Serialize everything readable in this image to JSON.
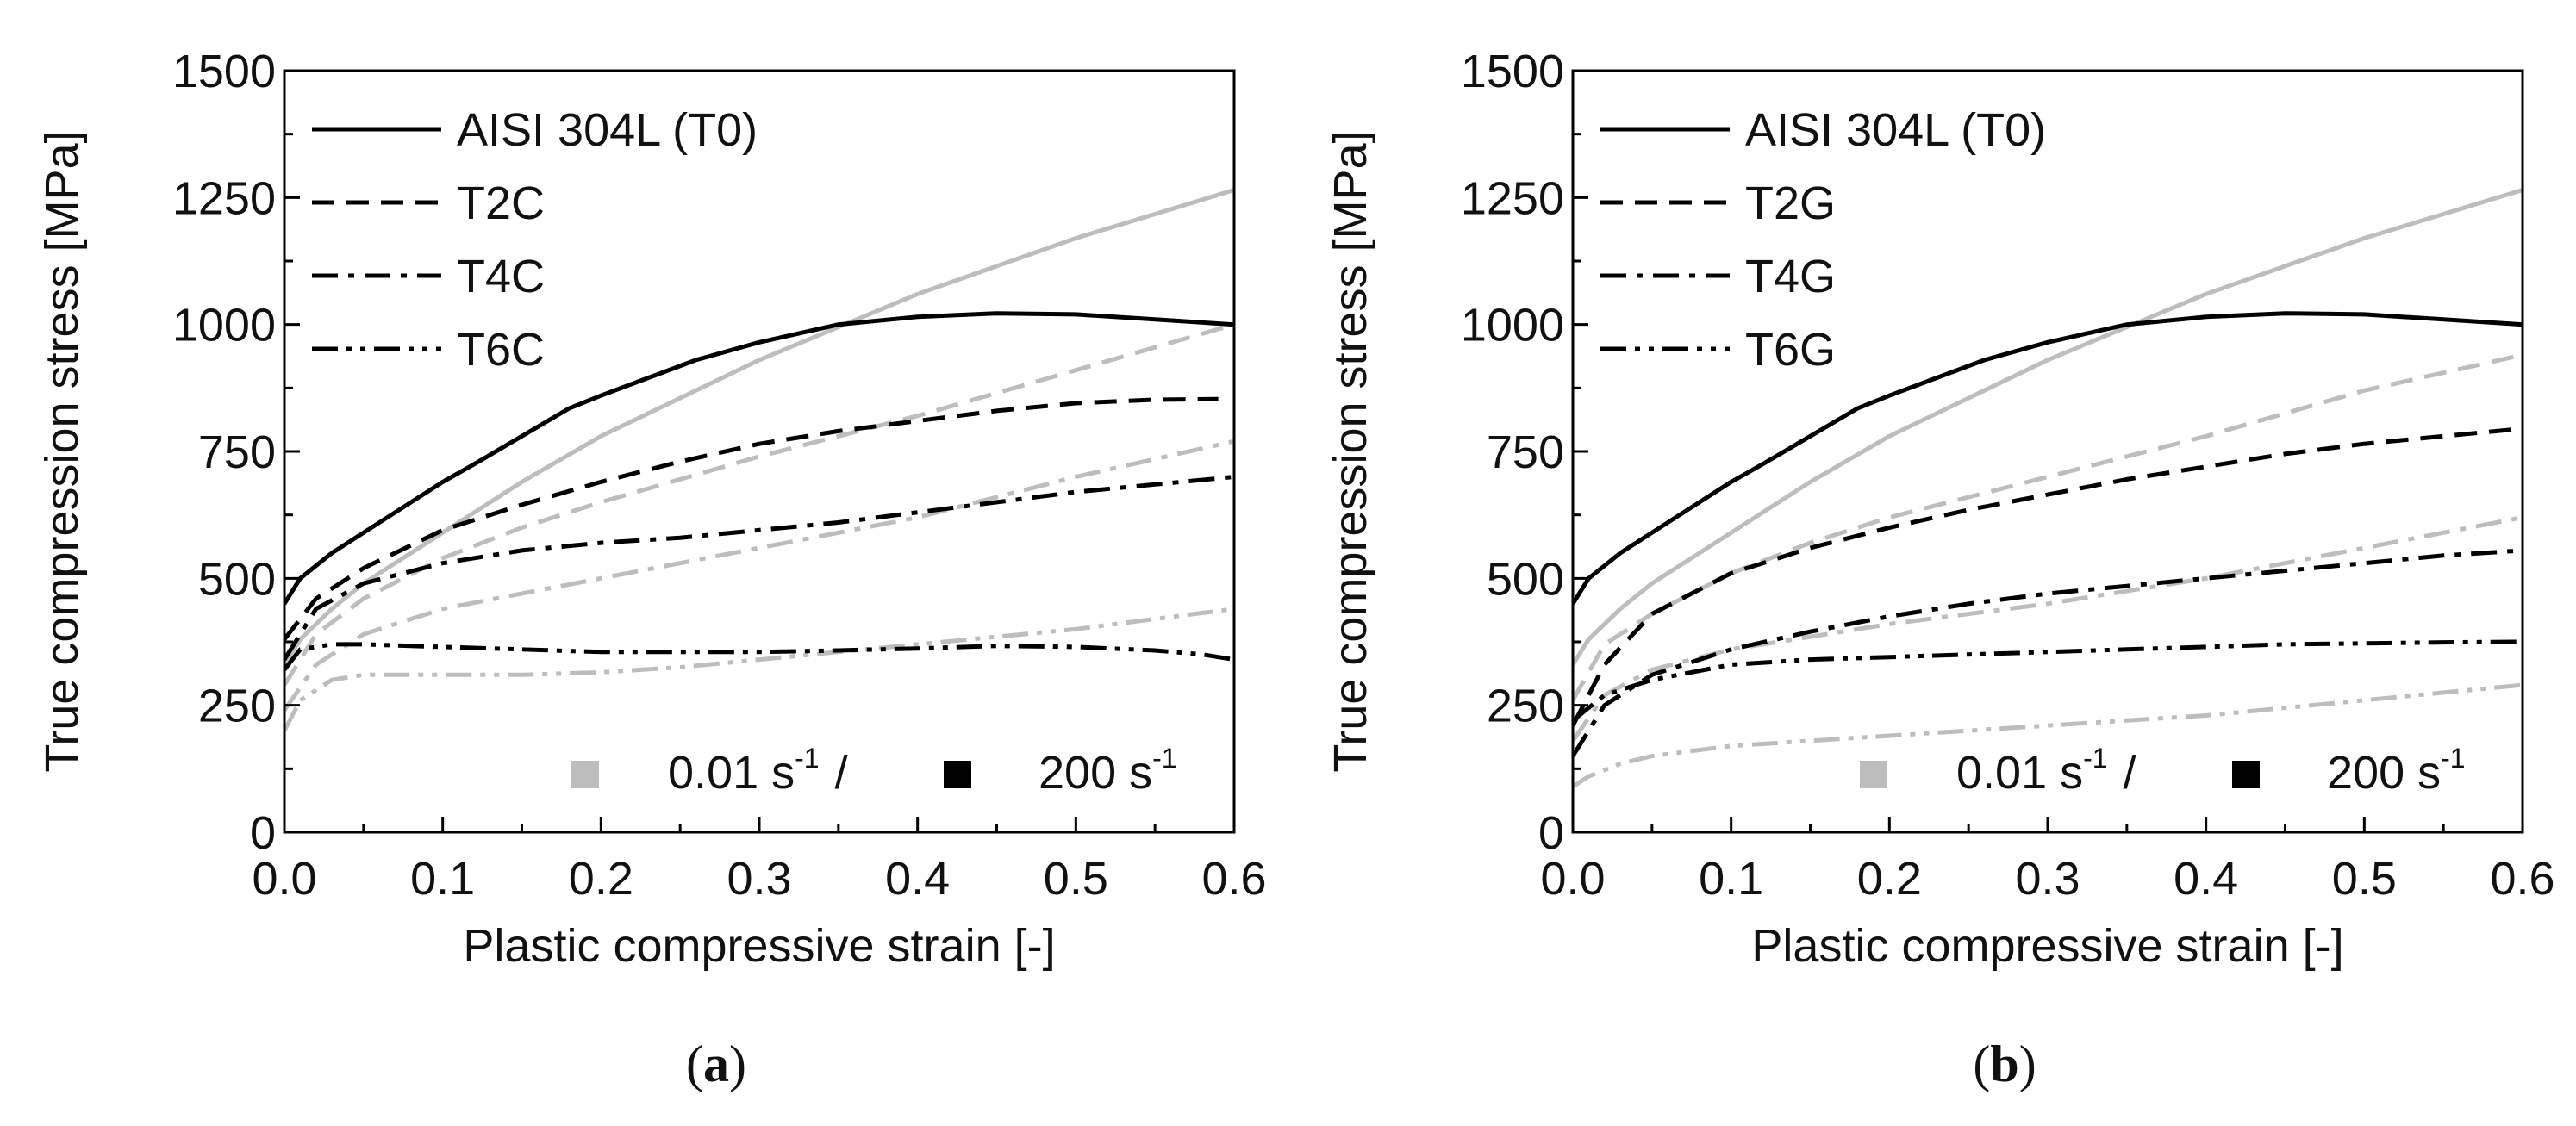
{
  "chart_data": [
    {
      "type": "line",
      "caption_letter": "a",
      "xlabel": "Plastic compressive strain [-]",
      "ylabel": "True compression stress [MPa]",
      "xlim": [
        0.0,
        0.6
      ],
      "ylim": [
        0,
        1500
      ],
      "xticks": [
        0.0,
        0.1,
        0.2,
        0.3,
        0.4,
        0.5,
        0.6
      ],
      "xtick_labels": [
        "0.0",
        "0.1",
        "0.2",
        "0.3",
        "0.4",
        "0.5",
        "0.6"
      ],
      "yticks": [
        0,
        250,
        500,
        750,
        1000,
        1250,
        1500
      ],
      "ytick_labels": [
        "0",
        "250",
        "500",
        "750",
        "1000",
        "1250",
        "1500"
      ],
      "legend": [
        {
          "label": "AISI 304L (T0)",
          "style": "solid"
        },
        {
          "label": "T2C",
          "style": "dash"
        },
        {
          "label": "T4C",
          "style": "dashdot"
        },
        {
          "label": "T6C",
          "style": "dashdotdot"
        }
      ],
      "rate_legend": {
        "low": "0.01 s",
        "high": "200 s",
        "exponent": "-1",
        "separator": "/"
      },
      "colors": {
        "low_rate": "#bdbdbd",
        "high_rate": "#000000"
      },
      "series": [
        {
          "name": "AISI 304L (T0)",
          "rate": "0.01 s-1",
          "style": "solid",
          "x": [
            0,
            0.01,
            0.03,
            0.05,
            0.1,
            0.15,
            0.2,
            0.3,
            0.4,
            0.5,
            0.6
          ],
          "y": [
            330,
            380,
            440,
            490,
            590,
            690,
            780,
            930,
            1060,
            1170,
            1265
          ]
        },
        {
          "name": "AISI 304L (T0)",
          "rate": "200 s-1",
          "style": "solid",
          "x": [
            0,
            0.01,
            0.03,
            0.05,
            0.07,
            0.1,
            0.12,
            0.15,
            0.18,
            0.2,
            0.23,
            0.26,
            0.3,
            0.35,
            0.4,
            0.45,
            0.5,
            0.55,
            0.6
          ],
          "y": [
            450,
            500,
            550,
            590,
            630,
            690,
            725,
            780,
            835,
            860,
            895,
            930,
            965,
            1000,
            1015,
            1022,
            1020,
            1010,
            1000
          ]
        },
        {
          "name": "T2C",
          "rate": "0.01 s-1",
          "style": "dash",
          "x": [
            0,
            0.02,
            0.05,
            0.1,
            0.15,
            0.2,
            0.3,
            0.4,
            0.5,
            0.6
          ],
          "y": [
            290,
            390,
            460,
            540,
            600,
            650,
            740,
            820,
            910,
            1000
          ]
        },
        {
          "name": "T2C",
          "rate": "200 s-1",
          "style": "dash",
          "x": [
            0,
            0.02,
            0.05,
            0.1,
            0.15,
            0.2,
            0.25,
            0.3,
            0.35,
            0.4,
            0.45,
            0.5,
            0.55,
            0.59
          ],
          "y": [
            380,
            460,
            520,
            595,
            645,
            690,
            730,
            765,
            790,
            810,
            830,
            845,
            852,
            853
          ]
        },
        {
          "name": "T4C",
          "rate": "0.01 s-1",
          "style": "dashdot",
          "x": [
            0,
            0.02,
            0.05,
            0.1,
            0.15,
            0.2,
            0.3,
            0.4,
            0.5,
            0.6
          ],
          "y": [
            240,
            330,
            390,
            440,
            470,
            500,
            560,
            620,
            700,
            770
          ]
        },
        {
          "name": "T4C",
          "rate": "200 s-1",
          "style": "dashdot",
          "x": [
            0,
            0.02,
            0.05,
            0.1,
            0.15,
            0.2,
            0.25,
            0.3,
            0.35,
            0.4,
            0.45,
            0.5,
            0.55,
            0.6
          ],
          "y": [
            340,
            440,
            490,
            530,
            555,
            570,
            580,
            595,
            610,
            630,
            650,
            670,
            685,
            700
          ]
        },
        {
          "name": "T6C",
          "rate": "0.01 s-1",
          "style": "dashdotdot",
          "x": [
            0,
            0.01,
            0.03,
            0.05,
            0.1,
            0.15,
            0.2,
            0.25,
            0.3,
            0.35,
            0.4,
            0.45,
            0.5,
            0.55,
            0.6
          ],
          "y": [
            200,
            260,
            300,
            310,
            310,
            310,
            315,
            325,
            340,
            355,
            370,
            385,
            400,
            420,
            440
          ]
        },
        {
          "name": "T6C",
          "rate": "200 s-1",
          "style": "dashdotdot",
          "x": [
            0,
            0.01,
            0.03,
            0.05,
            0.1,
            0.15,
            0.2,
            0.25,
            0.3,
            0.35,
            0.4,
            0.45,
            0.5,
            0.55,
            0.58,
            0.6
          ],
          "y": [
            320,
            360,
            370,
            370,
            365,
            360,
            355,
            355,
            355,
            358,
            362,
            367,
            365,
            358,
            350,
            340
          ]
        }
      ]
    },
    {
      "type": "line",
      "caption_letter": "b",
      "xlabel": "Plastic compressive strain [-]",
      "ylabel": "True compression stress [MPa]",
      "xlim": [
        0.0,
        0.6
      ],
      "ylim": [
        0,
        1500
      ],
      "xticks": [
        0.0,
        0.1,
        0.2,
        0.3,
        0.4,
        0.5,
        0.6
      ],
      "xtick_labels": [
        "0.0",
        "0.1",
        "0.2",
        "0.3",
        "0.4",
        "0.5",
        "0.6"
      ],
      "yticks": [
        0,
        250,
        500,
        750,
        1000,
        1250,
        1500
      ],
      "ytick_labels": [
        "0",
        "250",
        "500",
        "750",
        "1000",
        "1250",
        "1500"
      ],
      "legend": [
        {
          "label": "AISI 304L (T0)",
          "style": "solid"
        },
        {
          "label": "T2G",
          "style": "dash"
        },
        {
          "label": "T4G",
          "style": "dashdot"
        },
        {
          "label": "T6G",
          "style": "dashdotdot"
        }
      ],
      "rate_legend": {
        "low": "0.01 s",
        "high": "200 s",
        "exponent": "-1",
        "separator": "/"
      },
      "colors": {
        "low_rate": "#bdbdbd",
        "high_rate": "#000000"
      },
      "series": [
        {
          "name": "AISI 304L (T0)",
          "rate": "0.01 s-1",
          "style": "solid",
          "x": [
            0,
            0.01,
            0.03,
            0.05,
            0.1,
            0.15,
            0.2,
            0.3,
            0.4,
            0.5,
            0.6
          ],
          "y": [
            330,
            380,
            440,
            490,
            590,
            690,
            780,
            930,
            1060,
            1170,
            1265
          ]
        },
        {
          "name": "AISI 304L (T0)",
          "rate": "200 s-1",
          "style": "solid",
          "x": [
            0,
            0.01,
            0.03,
            0.05,
            0.07,
            0.1,
            0.12,
            0.15,
            0.18,
            0.2,
            0.23,
            0.26,
            0.3,
            0.35,
            0.4,
            0.45,
            0.5,
            0.55,
            0.6
          ],
          "y": [
            450,
            500,
            550,
            590,
            630,
            690,
            725,
            780,
            835,
            860,
            895,
            930,
            965,
            1000,
            1015,
            1022,
            1020,
            1010,
            1000
          ]
        },
        {
          "name": "T2G",
          "rate": "0.01 s-1",
          "style": "dash",
          "x": [
            0,
            0.02,
            0.05,
            0.1,
            0.15,
            0.2,
            0.3,
            0.4,
            0.5,
            0.6
          ],
          "y": [
            260,
            370,
            430,
            510,
            570,
            620,
            700,
            780,
            870,
            940
          ]
        },
        {
          "name": "T2G",
          "rate": "200 s-1",
          "style": "dash",
          "x": [
            0,
            0.02,
            0.05,
            0.1,
            0.15,
            0.2,
            0.25,
            0.3,
            0.35,
            0.4,
            0.45,
            0.5,
            0.55,
            0.6
          ],
          "y": [
            210,
            330,
            430,
            510,
            560,
            600,
            635,
            665,
            695,
            720,
            745,
            765,
            780,
            795
          ]
        },
        {
          "name": "T4G",
          "rate": "0.01 s-1",
          "style": "dashdot",
          "x": [
            0,
            0.02,
            0.05,
            0.1,
            0.15,
            0.2,
            0.3,
            0.4,
            0.5,
            0.6
          ],
          "y": [
            180,
            270,
            320,
            360,
            385,
            410,
            450,
            500,
            560,
            620
          ]
        },
        {
          "name": "T4G",
          "rate": "200 s-1",
          "style": "dashdot",
          "x": [
            0,
            0.02,
            0.05,
            0.1,
            0.15,
            0.2,
            0.25,
            0.3,
            0.35,
            0.4,
            0.45,
            0.5,
            0.55,
            0.6
          ],
          "y": [
            150,
            250,
            310,
            360,
            395,
            425,
            450,
            470,
            485,
            500,
            515,
            530,
            545,
            555
          ]
        },
        {
          "name": "T6G",
          "rate": "0.01 s-1",
          "style": "dashdotdot",
          "x": [
            0,
            0.01,
            0.03,
            0.05,
            0.1,
            0.15,
            0.2,
            0.25,
            0.3,
            0.35,
            0.4,
            0.45,
            0.5,
            0.55,
            0.6
          ],
          "y": [
            90,
            110,
            135,
            150,
            170,
            180,
            190,
            200,
            210,
            220,
            230,
            245,
            260,
            275,
            290
          ]
        },
        {
          "name": "T6G",
          "rate": "200 s-1",
          "style": "dashdotdot",
          "x": [
            0,
            0.02,
            0.05,
            0.1,
            0.15,
            0.2,
            0.25,
            0.3,
            0.35,
            0.4,
            0.45,
            0.5,
            0.55,
            0.6
          ],
          "y": [
            220,
            270,
            300,
            330,
            340,
            345,
            350,
            355,
            360,
            365,
            370,
            372,
            374,
            375
          ]
        }
      ]
    }
  ]
}
